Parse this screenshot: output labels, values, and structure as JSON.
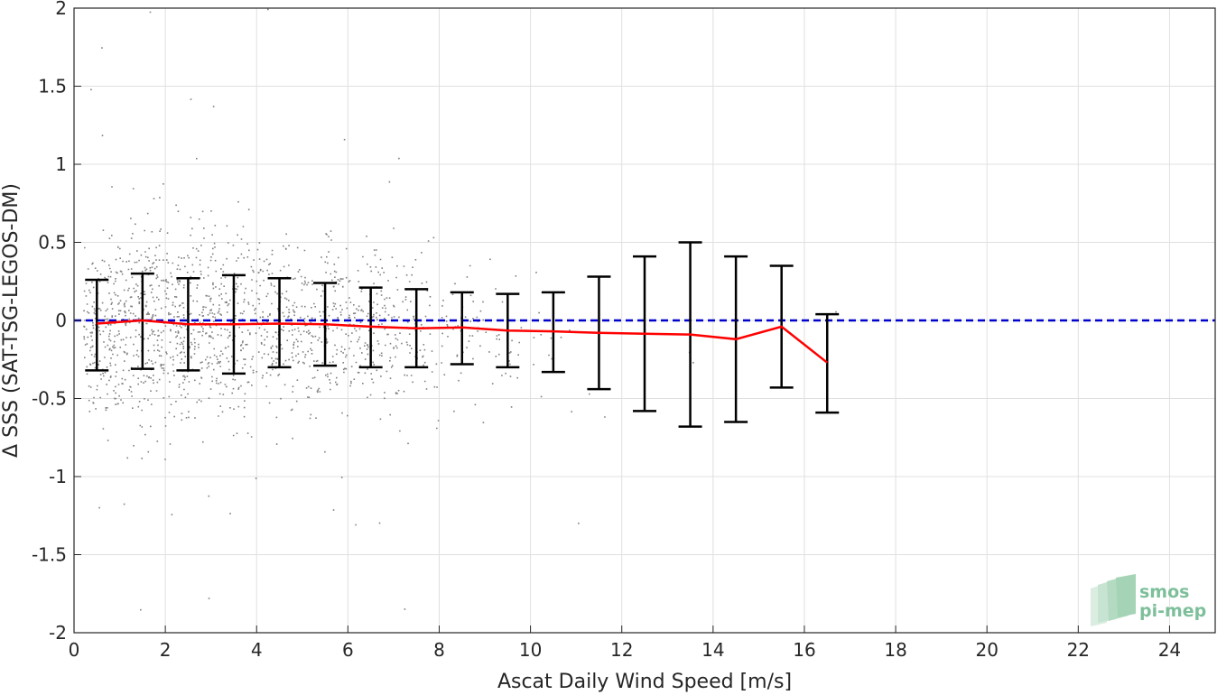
{
  "chart_data": {
    "type": "scatter",
    "xlabel": "Ascat Daily Wind Speed [m/s]",
    "ylabel": "Δ SSS (SAT-TSG-LEGOS-DM)",
    "xlim": [
      0,
      25
    ],
    "ylim": [
      -2,
      2
    ],
    "x_ticks": [
      "0",
      "2",
      "4",
      "6",
      "8",
      "10",
      "12",
      "14",
      "16",
      "18",
      "20",
      "22",
      "24"
    ],
    "y_ticks": [
      "-2",
      "-1.5",
      "-1",
      "-0.5",
      "0",
      "0.5",
      "1",
      "1.5",
      "2"
    ],
    "grid": true,
    "scatter_color": "#808080",
    "zero_line": {
      "y": 0,
      "color": "#0000cc",
      "style": "dashed"
    },
    "mean_line_color": "#ff0000",
    "errorbar_color": "#000000",
    "bins": [
      {
        "x": 0.5,
        "mean": -0.02,
        "lower": -0.32,
        "upper": 0.26
      },
      {
        "x": 1.5,
        "mean": 0.0,
        "lower": -0.31,
        "upper": 0.3
      },
      {
        "x": 2.5,
        "mean": -0.025,
        "lower": -0.32,
        "upper": 0.27
      },
      {
        "x": 3.5,
        "mean": -0.025,
        "lower": -0.34,
        "upper": 0.29
      },
      {
        "x": 4.5,
        "mean": -0.02,
        "lower": -0.3,
        "upper": 0.27
      },
      {
        "x": 5.5,
        "mean": -0.025,
        "lower": -0.29,
        "upper": 0.24
      },
      {
        "x": 6.5,
        "mean": -0.04,
        "lower": -0.3,
        "upper": 0.21
      },
      {
        "x": 7.5,
        "mean": -0.05,
        "lower": -0.3,
        "upper": 0.2
      },
      {
        "x": 8.5,
        "mean": -0.045,
        "lower": -0.28,
        "upper": 0.18
      },
      {
        "x": 9.5,
        "mean": -0.065,
        "lower": -0.3,
        "upper": 0.17
      },
      {
        "x": 10.5,
        "mean": -0.07,
        "lower": -0.33,
        "upper": 0.18
      },
      {
        "x": 11.5,
        "mean": -0.08,
        "lower": -0.44,
        "upper": 0.28
      },
      {
        "x": 12.5,
        "mean": -0.085,
        "lower": -0.58,
        "upper": 0.41
      },
      {
        "x": 13.5,
        "mean": -0.09,
        "lower": -0.68,
        "upper": 0.5
      },
      {
        "x": 14.5,
        "mean": -0.12,
        "lower": -0.65,
        "upper": 0.41
      },
      {
        "x": 15.5,
        "mean": -0.04,
        "lower": -0.43,
        "upper": 0.35
      },
      {
        "x": 16.5,
        "mean": -0.27,
        "lower": -0.59,
        "upper": 0.04
      }
    ]
  },
  "logo": {
    "line1": "smos",
    "line2": "pi-mep"
  }
}
